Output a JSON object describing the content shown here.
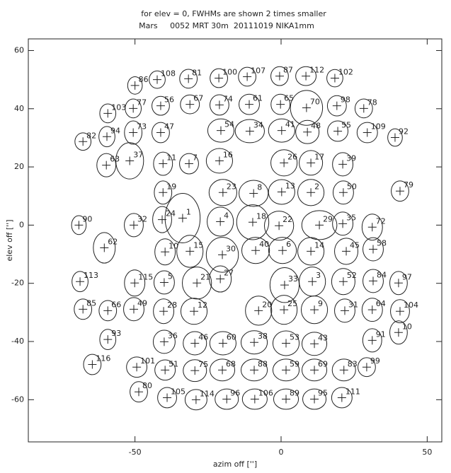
{
  "chart_data": {
    "type": "scatter",
    "title": "for elev = 0, FWHMs are shown 2 times smaller",
    "subtitle": "Mars     0052 MRT 30m  20111019 NIKA1mm",
    "x_label": "azim off ['']",
    "y_label": "elev off ['']",
    "xlim": [
      -86.5,
      55
    ],
    "ylim": [
      -74.5,
      64
    ],
    "xticks": [
      -50,
      0,
      50
    ],
    "yticks": [
      -60,
      -40,
      -20,
      0,
      20,
      40,
      60
    ],
    "color": "#222222",
    "labels": [
      "86",
      "108",
      "81",
      "100",
      "107",
      "87",
      "112",
      "102",
      "103",
      "77",
      "56",
      "67",
      "74",
      "61",
      "65",
      "70",
      "98",
      "78",
      "82",
      "94",
      "73",
      "47",
      "54",
      "34",
      "41",
      "48",
      "55",
      "109",
      "92",
      "63",
      "37",
      "11",
      "7",
      "16",
      "26",
      "17",
      "39",
      "19",
      "23",
      "8",
      "13",
      "2",
      "50",
      "79",
      "90",
      "32",
      "24",
      "1",
      "4",
      "18",
      "22",
      "29",
      "35",
      "72",
      "62",
      "10",
      "15",
      "30",
      "40",
      "6",
      "14",
      "45",
      "58",
      "113",
      "115",
      "5",
      "21",
      "27",
      "33",
      "3",
      "52",
      "84",
      "97",
      "85",
      "66",
      "49",
      "28",
      "12",
      "20",
      "25",
      "9",
      "31",
      "64",
      "104",
      "93",
      "36",
      "46",
      "60",
      "38",
      "53",
      "43",
      "91",
      "10",
      "116",
      "101",
      "51",
      "75",
      "68",
      "88",
      "59",
      "69",
      "83",
      "99",
      "80",
      "105",
      "114",
      "96",
      "106",
      "89",
      "95",
      "111"
    ],
    "x": [
      -50,
      -42.4,
      -31.7,
      -21.3,
      -11.6,
      -0.5,
      8.5,
      18.4,
      -59.3,
      -50.6,
      -41.2,
      -31.2,
      -21.1,
      -10.9,
      -0.2,
      8.7,
      19.1,
      28.3,
      -67.8,
      -59.6,
      -50.6,
      -41.2,
      -20.6,
      -10.7,
      0.2,
      9,
      19.4,
      29.5,
      39,
      -59.8,
      -51.8,
      -40.4,
      -31.5,
      -21.1,
      1,
      10.2,
      21.1,
      -40.4,
      -19.9,
      -9.4,
      0.2,
      10.2,
      21.3,
      40.7,
      -69.2,
      -50.4,
      -40.7,
      -33.7,
      -20.8,
      -9.7,
      -0.7,
      13.1,
      21.1,
      31.2,
      -60.5,
      -39.7,
      -31.2,
      -20.1,
      -8.7,
      0.5,
      10.2,
      22.3,
      31.5,
      -68.8,
      -50.1,
      -40,
      -28.8,
      -20.8,
      1.2,
      10.7,
      21.3,
      31.5,
      40.2,
      -67.8,
      -59.3,
      -50.4,
      -40.2,
      -29.8,
      -7.7,
      1,
      11.4,
      21.8,
      31.2,
      40.7,
      -59.3,
      -40,
      -29.5,
      -19.9,
      -9.2,
      1.7,
      11.4,
      31.2,
      40.2,
      -64.6,
      -49.4,
      -39.7,
      -29.5,
      -20.1,
      -9.2,
      1.7,
      11.4,
      21.5,
      29.3,
      -48.7,
      -39,
      -29.1,
      -18.6,
      -9,
      1.7,
      11.4,
      20.8
    ],
    "y": [
      48,
      50,
      50.3,
      50.5,
      51,
      51.2,
      51.2,
      50.5,
      38.4,
      40.1,
      41,
      41.5,
      41.3,
      41.5,
      41.5,
      40.3,
      41,
      40.1,
      28.7,
      30.4,
      31.8,
      31.8,
      32.5,
      32.3,
      32.5,
      32,
      32.3,
      31.8,
      30.1,
      20.6,
      22.1,
      21.1,
      21.1,
      22.1,
      21.4,
      21.4,
      20.9,
      11.2,
      11.2,
      10.9,
      11.4,
      11.2,
      11.2,
      11.7,
      0,
      0,
      1.9,
      2.4,
      1.2,
      1,
      -0.2,
      0,
      0.5,
      -0.7,
      -7.8,
      -9.2,
      -9,
      -10.2,
      -8.7,
      -8.7,
      -9,
      -9,
      -8.3,
      -19.4,
      -19.9,
      -19.7,
      -19.9,
      -18.5,
      -20.6,
      -19.4,
      -19.4,
      -19.2,
      -19.9,
      -28.9,
      -29.4,
      -28.9,
      -29.6,
      -29.6,
      -29.4,
      -29.1,
      -29.1,
      -29.4,
      -29.1,
      -29.6,
      -39.3,
      -40.1,
      -40.6,
      -40.6,
      -40.3,
      -40.6,
      -40.8,
      -39.6,
      -36.9,
      -47.9,
      -48.8,
      -49.8,
      -50,
      -49.8,
      -49.8,
      -49.8,
      -49.8,
      -49.8,
      -48.8,
      -57.3,
      -59.3,
      -60,
      -59.8,
      -59.8,
      -59.8,
      -59.8,
      -59.3
    ],
    "ellipse_width": [
      5,
      5.5,
      6,
      6,
      6,
      6,
      7,
      5.5,
      5.5,
      5.5,
      6,
      6.5,
      6.5,
      7,
      6.5,
      11,
      6.5,
      6,
      5.5,
      5.5,
      6,
      6,
      9,
      10,
      9,
      8,
      7,
      7,
      5,
      6.5,
      9.5,
      6.5,
      6.5,
      9,
      9,
      8,
      7,
      6,
      9.5,
      10,
      9,
      9,
      7,
      6,
      5,
      6.5,
      6.5,
      12,
      9,
      11,
      10,
      12,
      7,
      7,
      7.5,
      7,
      9,
      11,
      9.5,
      9.5,
      9,
      8,
      7,
      5.5,
      7,
      7,
      10,
      7.5,
      10,
      9,
      8,
      7,
      6,
      6,
      6,
      7,
      7,
      9,
      9,
      9,
      9,
      7,
      7,
      6.5,
      5.5,
      7.5,
      8,
      9,
      9,
      9,
      8.5,
      6.5,
      6,
      6,
      7,
      7,
      8,
      8.5,
      9,
      9,
      8.5,
      8,
      6,
      6,
      6.5,
      7.5,
      8,
      8.5,
      8.5,
      8,
      7
    ],
    "ellipse_height": [
      6,
      6,
      6.5,
      6.5,
      6.5,
      6.5,
      6.5,
      6,
      6.5,
      6.5,
      6.5,
      6.5,
      7,
      7,
      7,
      12,
      7,
      6.5,
      6,
      7,
      8,
      7,
      8,
      8,
      8,
      8,
      7,
      7,
      6,
      8,
      12.5,
      8,
      7,
      8.5,
      9,
      8.5,
      8,
      8,
      9,
      9,
      8.5,
      9,
      8,
      7,
      6.5,
      8,
      9,
      17,
      10,
      12,
      10,
      10,
      8,
      9,
      10.5,
      9,
      11,
      12,
      9,
      9,
      9.5,
      9,
      8,
      7,
      9,
      8,
      11,
      9,
      12,
      10,
      9,
      8,
      8,
      7,
      7,
      8,
      8.5,
      9,
      10,
      10,
      9.5,
      8,
      8,
      8,
      7,
      8,
      8,
      8,
      8,
      8.5,
      8,
      8,
      8,
      7,
      7,
      7,
      7.5,
      7.5,
      7.5,
      7.5,
      7.5,
      7.5,
      6.5,
      7,
      7,
      7,
      7,
      7,
      7,
      7,
      7
    ]
  }
}
